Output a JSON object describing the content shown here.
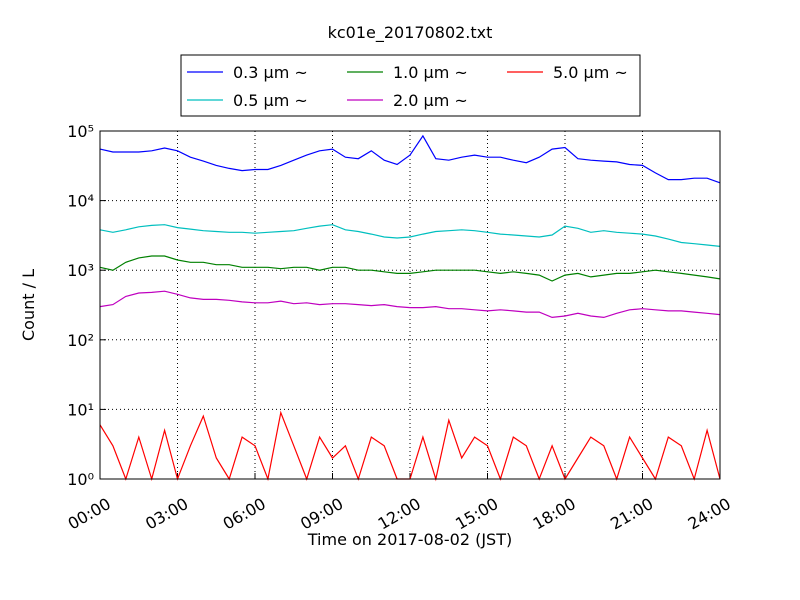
{
  "chart_data": {
    "type": "line",
    "title": "kc01e_20170802.txt",
    "x_label": "Time on 2017-08-02 (JST)",
    "y_label": "Count / L",
    "log_y": true,
    "grid": true,
    "legend": "top",
    "x": [
      0,
      0.5,
      1,
      1.5,
      2,
      2.5,
      3,
      3.5,
      4,
      4.5,
      5,
      5.5,
      6,
      6.5,
      7,
      7.5,
      8,
      8.5,
      9,
      9.5,
      10,
      10.5,
      11,
      11.5,
      12,
      12.5,
      13,
      13.5,
      14,
      14.5,
      15,
      15.5,
      16,
      16.5,
      17,
      17.5,
      18,
      18.5,
      19,
      19.5,
      20,
      20.5,
      21,
      21.5,
      22,
      22.5,
      23,
      23.5,
      24
    ],
    "xlim": [
      0,
      24
    ],
    "xticks": [
      {
        "value": 0,
        "label": "00:00"
      },
      {
        "value": 3,
        "label": "03:00"
      },
      {
        "value": 6,
        "label": "06:00"
      },
      {
        "value": 9,
        "label": "09:00"
      },
      {
        "value": 12,
        "label": "12:00"
      },
      {
        "value": 15,
        "label": "15:00"
      },
      {
        "value": 18,
        "label": "18:00"
      },
      {
        "value": 21,
        "label": "21:00"
      },
      {
        "value": 24,
        "label": "24:00"
      }
    ],
    "ylim": [
      1,
      100000
    ],
    "yticks": [
      {
        "value": 1,
        "label": "10⁰"
      },
      {
        "value": 10,
        "label": "10¹"
      },
      {
        "value": 100,
        "label": "10²"
      },
      {
        "value": 1000,
        "label": "10³"
      },
      {
        "value": 10000,
        "label": "10⁴"
      },
      {
        "value": 100000,
        "label": "10⁵"
      }
    ],
    "series": [
      {
        "name": "0.3 μm ~",
        "color": "#0000ff",
        "values": [
          55000,
          50000,
          50000,
          50000,
          52000,
          57000,
          52000,
          42000,
          37000,
          32000,
          29000,
          27000,
          28000,
          28000,
          32000,
          38000,
          45000,
          52000,
          55000,
          42000,
          40000,
          52000,
          38000,
          33000,
          45000,
          85000,
          40000,
          38000,
          42000,
          45000,
          42000,
          42000,
          38000,
          35000,
          42000,
          55000,
          58000,
          40000,
          38000,
          37000,
          36000,
          33000,
          32000,
          25000,
          20000,
          20000,
          21000,
          21000,
          18000
        ]
      },
      {
        "name": "0.5 μm ~",
        "color": "#00bfbf",
        "values": [
          3800,
          3500,
          3800,
          4200,
          4400,
          4500,
          4100,
          3900,
          3700,
          3600,
          3500,
          3500,
          3400,
          3500,
          3600,
          3700,
          4000,
          4300,
          4500,
          3800,
          3600,
          3300,
          3000,
          2900,
          3000,
          3300,
          3600,
          3700,
          3800,
          3700,
          3500,
          3300,
          3200,
          3100,
          3000,
          3200,
          4300,
          4000,
          3500,
          3700,
          3500,
          3400,
          3300,
          3100,
          2800,
          2500,
          2400,
          2300,
          2200
        ]
      },
      {
        "name": "1.0 μm ~",
        "color": "#008000",
        "values": [
          1100,
          1000,
          1300,
          1500,
          1600,
          1600,
          1400,
          1300,
          1300,
          1200,
          1200,
          1100,
          1100,
          1100,
          1050,
          1100,
          1100,
          1000,
          1100,
          1100,
          1000,
          1000,
          950,
          900,
          900,
          950,
          1000,
          1000,
          1000,
          1000,
          950,
          900,
          950,
          900,
          850,
          700,
          850,
          900,
          800,
          850,
          900,
          900,
          950,
          1000,
          950,
          900,
          850,
          800,
          750
        ]
      },
      {
        "name": "2.0 μm ~",
        "color": "#bf00bf",
        "values": [
          300,
          320,
          420,
          470,
          480,
          500,
          450,
          400,
          380,
          380,
          370,
          350,
          340,
          340,
          360,
          330,
          340,
          320,
          330,
          330,
          320,
          310,
          320,
          300,
          290,
          290,
          300,
          280,
          280,
          270,
          260,
          270,
          260,
          250,
          250,
          210,
          220,
          240,
          220,
          210,
          240,
          270,
          280,
          270,
          260,
          260,
          250,
          240,
          230
        ]
      },
      {
        "name": "5.0 μm ~",
        "color": "#ff0000",
        "values": [
          6,
          3,
          1,
          4,
          1,
          5,
          1,
          3,
          8,
          2,
          1,
          4,
          3,
          1,
          9,
          3,
          1,
          4,
          2,
          3,
          1,
          4,
          3,
          1,
          1,
          4,
          1,
          7,
          2,
          4,
          3,
          1,
          4,
          3,
          1,
          3,
          1,
          2,
          4,
          3,
          1,
          4,
          2,
          1,
          4,
          3,
          1,
          5,
          1
        ]
      }
    ]
  }
}
